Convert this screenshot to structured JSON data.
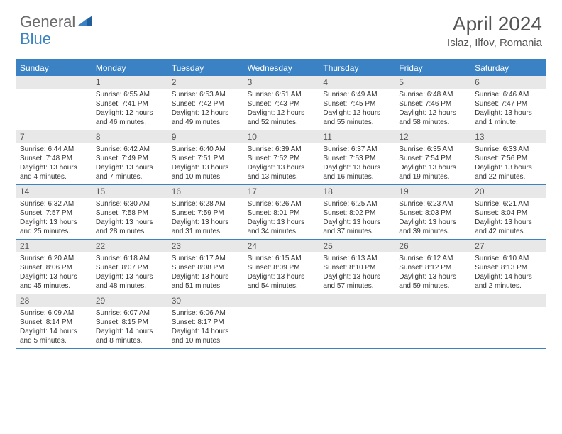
{
  "logo": {
    "part1": "General",
    "part2": "Blue"
  },
  "title": "April 2024",
  "location": "Islaz, Ilfov, Romania",
  "colors": {
    "accent": "#3b82c4",
    "header_bg": "#e8e8e8",
    "text": "#333333",
    "muted": "#555555",
    "bg": "#ffffff"
  },
  "dow": [
    "Sunday",
    "Monday",
    "Tuesday",
    "Wednesday",
    "Thursday",
    "Friday",
    "Saturday"
  ],
  "weeks": [
    [
      null,
      {
        "n": "1",
        "sr": "Sunrise: 6:55 AM",
        "ss": "Sunset: 7:41 PM",
        "dl": "Daylight: 12 hours and 46 minutes."
      },
      {
        "n": "2",
        "sr": "Sunrise: 6:53 AM",
        "ss": "Sunset: 7:42 PM",
        "dl": "Daylight: 12 hours and 49 minutes."
      },
      {
        "n": "3",
        "sr": "Sunrise: 6:51 AM",
        "ss": "Sunset: 7:43 PM",
        "dl": "Daylight: 12 hours and 52 minutes."
      },
      {
        "n": "4",
        "sr": "Sunrise: 6:49 AM",
        "ss": "Sunset: 7:45 PM",
        "dl": "Daylight: 12 hours and 55 minutes."
      },
      {
        "n": "5",
        "sr": "Sunrise: 6:48 AM",
        "ss": "Sunset: 7:46 PM",
        "dl": "Daylight: 12 hours and 58 minutes."
      },
      {
        "n": "6",
        "sr": "Sunrise: 6:46 AM",
        "ss": "Sunset: 7:47 PM",
        "dl": "Daylight: 13 hours and 1 minute."
      }
    ],
    [
      {
        "n": "7",
        "sr": "Sunrise: 6:44 AM",
        "ss": "Sunset: 7:48 PM",
        "dl": "Daylight: 13 hours and 4 minutes."
      },
      {
        "n": "8",
        "sr": "Sunrise: 6:42 AM",
        "ss": "Sunset: 7:49 PM",
        "dl": "Daylight: 13 hours and 7 minutes."
      },
      {
        "n": "9",
        "sr": "Sunrise: 6:40 AM",
        "ss": "Sunset: 7:51 PM",
        "dl": "Daylight: 13 hours and 10 minutes."
      },
      {
        "n": "10",
        "sr": "Sunrise: 6:39 AM",
        "ss": "Sunset: 7:52 PM",
        "dl": "Daylight: 13 hours and 13 minutes."
      },
      {
        "n": "11",
        "sr": "Sunrise: 6:37 AM",
        "ss": "Sunset: 7:53 PM",
        "dl": "Daylight: 13 hours and 16 minutes."
      },
      {
        "n": "12",
        "sr": "Sunrise: 6:35 AM",
        "ss": "Sunset: 7:54 PM",
        "dl": "Daylight: 13 hours and 19 minutes."
      },
      {
        "n": "13",
        "sr": "Sunrise: 6:33 AM",
        "ss": "Sunset: 7:56 PM",
        "dl": "Daylight: 13 hours and 22 minutes."
      }
    ],
    [
      {
        "n": "14",
        "sr": "Sunrise: 6:32 AM",
        "ss": "Sunset: 7:57 PM",
        "dl": "Daylight: 13 hours and 25 minutes."
      },
      {
        "n": "15",
        "sr": "Sunrise: 6:30 AM",
        "ss": "Sunset: 7:58 PM",
        "dl": "Daylight: 13 hours and 28 minutes."
      },
      {
        "n": "16",
        "sr": "Sunrise: 6:28 AM",
        "ss": "Sunset: 7:59 PM",
        "dl": "Daylight: 13 hours and 31 minutes."
      },
      {
        "n": "17",
        "sr": "Sunrise: 6:26 AM",
        "ss": "Sunset: 8:01 PM",
        "dl": "Daylight: 13 hours and 34 minutes."
      },
      {
        "n": "18",
        "sr": "Sunrise: 6:25 AM",
        "ss": "Sunset: 8:02 PM",
        "dl": "Daylight: 13 hours and 37 minutes."
      },
      {
        "n": "19",
        "sr": "Sunrise: 6:23 AM",
        "ss": "Sunset: 8:03 PM",
        "dl": "Daylight: 13 hours and 39 minutes."
      },
      {
        "n": "20",
        "sr": "Sunrise: 6:21 AM",
        "ss": "Sunset: 8:04 PM",
        "dl": "Daylight: 13 hours and 42 minutes."
      }
    ],
    [
      {
        "n": "21",
        "sr": "Sunrise: 6:20 AM",
        "ss": "Sunset: 8:06 PM",
        "dl": "Daylight: 13 hours and 45 minutes."
      },
      {
        "n": "22",
        "sr": "Sunrise: 6:18 AM",
        "ss": "Sunset: 8:07 PM",
        "dl": "Daylight: 13 hours and 48 minutes."
      },
      {
        "n": "23",
        "sr": "Sunrise: 6:17 AM",
        "ss": "Sunset: 8:08 PM",
        "dl": "Daylight: 13 hours and 51 minutes."
      },
      {
        "n": "24",
        "sr": "Sunrise: 6:15 AM",
        "ss": "Sunset: 8:09 PM",
        "dl": "Daylight: 13 hours and 54 minutes."
      },
      {
        "n": "25",
        "sr": "Sunrise: 6:13 AM",
        "ss": "Sunset: 8:10 PM",
        "dl": "Daylight: 13 hours and 57 minutes."
      },
      {
        "n": "26",
        "sr": "Sunrise: 6:12 AM",
        "ss": "Sunset: 8:12 PM",
        "dl": "Daylight: 13 hours and 59 minutes."
      },
      {
        "n": "27",
        "sr": "Sunrise: 6:10 AM",
        "ss": "Sunset: 8:13 PM",
        "dl": "Daylight: 14 hours and 2 minutes."
      }
    ],
    [
      {
        "n": "28",
        "sr": "Sunrise: 6:09 AM",
        "ss": "Sunset: 8:14 PM",
        "dl": "Daylight: 14 hours and 5 minutes."
      },
      {
        "n": "29",
        "sr": "Sunrise: 6:07 AM",
        "ss": "Sunset: 8:15 PM",
        "dl": "Daylight: 14 hours and 8 minutes."
      },
      {
        "n": "30",
        "sr": "Sunrise: 6:06 AM",
        "ss": "Sunset: 8:17 PM",
        "dl": "Daylight: 14 hours and 10 minutes."
      },
      null,
      null,
      null,
      null
    ]
  ]
}
